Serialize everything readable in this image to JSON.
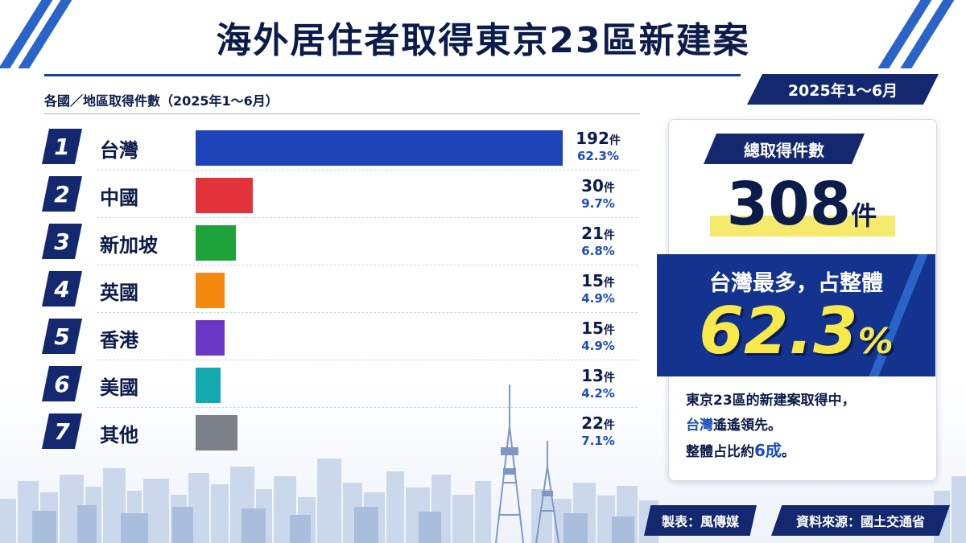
{
  "title": "海外居住者取得東京23區新建案",
  "period_tag": "2025年1～6月",
  "subtitle": "各國／地區取得件數（2025年1～6月）",
  "unit": "件",
  "colors": {
    "navy": "#13286e",
    "accent_blue": "#1c4dbb",
    "highlight_yellow": "#f8e94a"
  },
  "chart_data": {
    "type": "bar",
    "orientation": "horizontal",
    "categories": [
      "台灣",
      "中國",
      "新加坡",
      "英國",
      "香港",
      "美國",
      "其他"
    ],
    "values": [
      192,
      30,
      21,
      15,
      15,
      13,
      22
    ],
    "percent_labels": [
      "62.3%",
      "9.7%",
      "6.8%",
      "4.9%",
      "4.9%",
      "4.2%",
      "7.1%"
    ],
    "bar_colors": [
      "#1c44b8",
      "#e2323a",
      "#1ea33a",
      "#f5890f",
      "#6a36c6",
      "#14aab2",
      "#7b8089"
    ],
    "ranks": [
      "1",
      "2",
      "3",
      "4",
      "5",
      "6",
      "7"
    ],
    "xlim": [
      0,
      192
    ]
  },
  "summary": {
    "total_label": "總取得件數",
    "total_value": "308",
    "total_unit": "件",
    "share_label": "台灣最多，占整體",
    "share_value": "62.3",
    "share_unit": "%",
    "note_line1": "東京23區的新建案取得中，",
    "note_line2_hl": "台灣",
    "note_line2_rest": "遙遙領先。",
    "note_line3_a": "整體占比約",
    "note_line3_hl": "6成",
    "note_line3_b": "。"
  },
  "footer": {
    "producer": "製表：風傳媒",
    "source": "資料來源：國土交通省"
  }
}
